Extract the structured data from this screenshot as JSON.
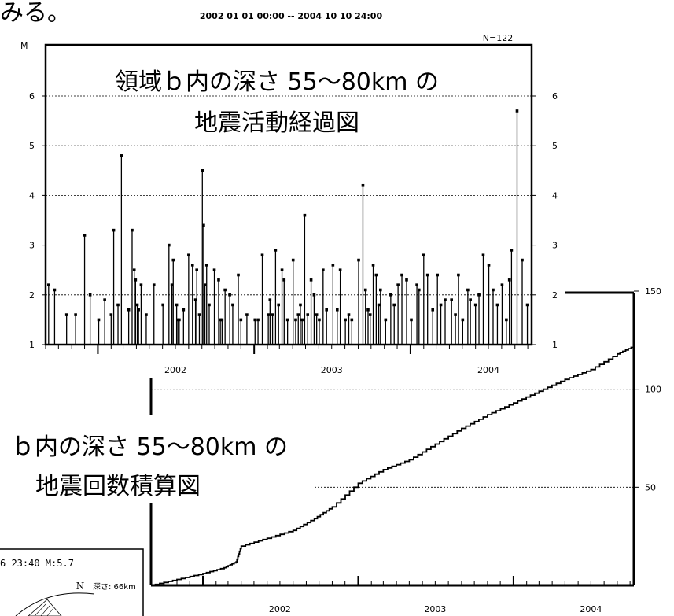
{
  "top_fragment": "みる。",
  "period": "2002 01 01 00:00 -- 2004 10 10 24:00",
  "magnitude_chart": {
    "mag_label": "M",
    "count_label": "N=122",
    "title_line1": "領域ｂ内の深さ 55～80km の",
    "title_line2": "地震活動経過図"
  },
  "cumulative_chart": {
    "title_line1": "ｂ内の深さ 55～80km の",
    "title_line2": "地震回数積算図"
  },
  "mechanism_box": {
    "time_mag": "6 23:40 M:5.7",
    "north": "N",
    "depth_label": "深さ: 66km"
  },
  "chart_data": [
    {
      "type": "bar",
      "title": "領域ｂ内の深さ 55～80km の 地震活動経過図",
      "xlabel": "",
      "ylabel": "M",
      "x_range": [
        "2001-09-01",
        "2004-10-10"
      ],
      "x_ticks": [
        "2002",
        "2003",
        "2004"
      ],
      "y_ticks": [
        1,
        2,
        3,
        4,
        5,
        6
      ],
      "ylim": [
        1,
        7
      ],
      "grid": "horizontal-dashed",
      "x": [
        "2001-09-08",
        "2001-09-22",
        "2001-10-20",
        "2001-11-10",
        "2001-12-01",
        "2001-12-14",
        "2002-01-03",
        "2002-01-17",
        "2002-02-01",
        "2002-02-07",
        "2002-02-17",
        "2002-02-25",
        "2002-03-14",
        "2002-03-22",
        "2002-03-27",
        "2002-03-30",
        "2002-04-03",
        "2002-04-06",
        "2002-04-12",
        "2002-04-24",
        "2002-05-12",
        "2002-06-02",
        "2002-06-16",
        "2002-06-23",
        "2002-06-26",
        "2002-07-04",
        "2002-07-07",
        "2002-07-10",
        "2002-07-20",
        "2002-08-01",
        "2002-08-10",
        "2002-08-17",
        "2002-08-20",
        "2002-08-26",
        "2002-09-02",
        "2002-09-05",
        "2002-09-08",
        "2002-09-12",
        "2002-09-18",
        "2002-09-30",
        "2002-10-10",
        "2002-10-14",
        "2002-10-18",
        "2002-10-25",
        "2002-11-05",
        "2002-11-12",
        "2002-11-25",
        "2002-12-01",
        "2002-12-15",
        "2003-01-03",
        "2003-01-10",
        "2003-01-20",
        "2003-02-03",
        "2003-02-07",
        "2003-02-13",
        "2003-02-20",
        "2003-02-27",
        "2003-03-07",
        "2003-03-12",
        "2003-03-20",
        "2003-04-02",
        "2003-04-08",
        "2003-04-14",
        "2003-04-19",
        "2003-04-23",
        "2003-04-29",
        "2003-05-06",
        "2003-05-14",
        "2003-05-21",
        "2003-05-27",
        "2003-06-02",
        "2003-06-11",
        "2003-06-19",
        "2003-07-04",
        "2003-07-14",
        "2003-07-21",
        "2003-08-02",
        "2003-08-10",
        "2003-08-17",
        "2003-09-02",
        "2003-09-12",
        "2003-09-18",
        "2003-09-24",
        "2003-09-29",
        "2003-10-06",
        "2003-10-13",
        "2003-10-19",
        "2003-10-23",
        "2003-11-04",
        "2003-11-16",
        "2003-11-24",
        "2003-12-03",
        "2003-12-12",
        "2003-12-23",
        "2004-01-03",
        "2004-01-16",
        "2004-01-21",
        "2004-02-01",
        "2004-02-10",
        "2004-02-22",
        "2004-03-04",
        "2004-03-12",
        "2004-03-22",
        "2004-04-06",
        "2004-04-15",
        "2004-04-22",
        "2004-05-02",
        "2004-05-14",
        "2004-05-20",
        "2004-06-01",
        "2004-06-09",
        "2004-06-19",
        "2004-07-02",
        "2004-07-12",
        "2004-07-22",
        "2004-08-02",
        "2004-08-12",
        "2004-08-19",
        "2004-08-24",
        "2004-09-06",
        "2004-09-18",
        "2004-09-30"
      ],
      "values": [
        2.2,
        2.1,
        1.6,
        1.6,
        3.2,
        2.0,
        1.5,
        1.9,
        1.6,
        3.3,
        1.8,
        4.8,
        1.7,
        3.3,
        2.5,
        2.3,
        1.8,
        1.7,
        2.2,
        1.6,
        2.2,
        1.8,
        3.0,
        2.2,
        2.7,
        1.8,
        1.5,
        1.5,
        1.7,
        2.8,
        2.6,
        1.9,
        2.5,
        1.6,
        4.5,
        3.4,
        2.2,
        2.6,
        1.8,
        2.5,
        2.3,
        1.5,
        1.5,
        2.1,
        2.0,
        1.8,
        2.4,
        1.5,
        1.6,
        1.5,
        1.5,
        2.8,
        1.6,
        1.9,
        1.6,
        2.9,
        1.8,
        2.5,
        2.3,
        1.5,
        2.7,
        1.5,
        1.6,
        1.8,
        1.5,
        3.6,
        1.6,
        2.3,
        2.0,
        1.6,
        1.5,
        2.5,
        1.7,
        2.6,
        1.7,
        2.5,
        1.5,
        1.6,
        1.5,
        2.7,
        4.2,
        2.1,
        1.7,
        1.6,
        2.6,
        2.4,
        1.8,
        2.1,
        1.5,
        2.0,
        1.8,
        2.2,
        2.4,
        2.3,
        1.5,
        2.2,
        2.1,
        2.8,
        2.4,
        1.7,
        2.4,
        1.8,
        1.9,
        1.9,
        1.6,
        2.4,
        1.5,
        2.1,
        1.9,
        1.8,
        2.0,
        2.8,
        2.6,
        2.1,
        1.8,
        2.2,
        1.5,
        2.3,
        2.9,
        5.7,
        2.7,
        1.8
      ]
    },
    {
      "type": "line",
      "title": "ｂ内の深さ 55～80km の 地震回数積算図",
      "xlabel": "",
      "ylabel": "",
      "x_ticks": [
        "2002",
        "2003",
        "2004"
      ],
      "y_ticks": [
        50,
        100,
        150
      ],
      "ylim": [
        0,
        150
      ],
      "grid": "horizontal-dashed",
      "x": [
        "2001-09-01",
        "2001-11-01",
        "2002-01-01",
        "2002-02-20",
        "2002-03-20",
        "2002-04-01",
        "2002-06-01",
        "2002-08-01",
        "2002-09-20",
        "2002-11-01",
        "2003-01-01",
        "2003-03-01",
        "2003-05-01",
        "2003-07-01",
        "2003-09-01",
        "2003-11-01",
        "2004-01-01",
        "2004-03-01",
        "2004-05-01",
        "2004-07-01",
        "2004-09-01",
        "2004-10-10"
      ],
      "values": [
        0,
        3,
        6,
        9,
        12,
        20,
        24,
        28,
        34,
        40,
        52,
        59,
        64,
        72,
        80,
        87,
        93,
        99,
        105,
        110,
        118,
        122
      ]
    }
  ]
}
